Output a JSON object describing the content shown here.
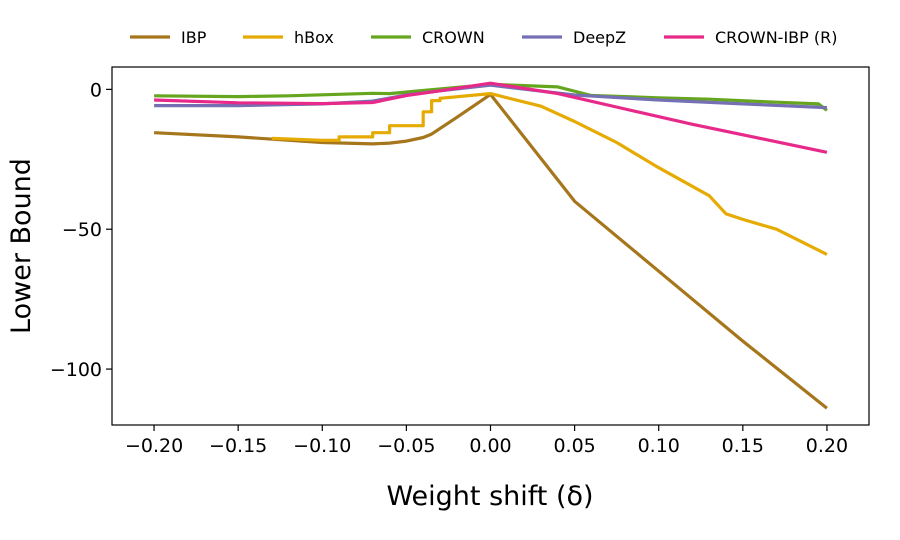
{
  "chart_data": {
    "type": "line",
    "xlabel": "Weight shift (δ)",
    "ylabel": "Lower Bound",
    "xlim": [
      -0.225,
      0.225
    ],
    "ylim": [
      -120,
      8
    ],
    "xticks": [
      -0.2,
      -0.15,
      -0.1,
      -0.05,
      0.0,
      0.05,
      0.1,
      0.15,
      0.2
    ],
    "xtick_labels": [
      "−0.20",
      "−0.15",
      "−0.10",
      "−0.05",
      "0.00",
      "0.05",
      "0.10",
      "0.15",
      "0.20"
    ],
    "yticks": [
      0,
      -50,
      -100
    ],
    "ytick_labels": [
      "0",
      "−50",
      "−100"
    ],
    "grid": false,
    "legend_position": "top-outside",
    "series": [
      {
        "name": "IBP",
        "color": "#a6761d",
        "x": [
          -0.2,
          -0.15,
          -0.1,
          -0.07,
          -0.06,
          -0.05,
          -0.04,
          -0.035,
          -0.02,
          0.0,
          0.05,
          0.1,
          0.15,
          0.2
        ],
        "y": [
          -15.5,
          -17.0,
          -19.0,
          -19.5,
          -19.2,
          -18.5,
          -17.2,
          -16.0,
          -10.0,
          -1.8,
          -40.0,
          -65.0,
          -90.0,
          -114.0
        ]
      },
      {
        "name": "hBox",
        "color": "#e6ab02",
        "x": [
          -0.13,
          -0.1,
          -0.09,
          -0.09,
          -0.07,
          -0.07,
          -0.06,
          -0.06,
          -0.04,
          -0.04,
          -0.035,
          -0.035,
          -0.03,
          -0.03,
          0.0,
          0.03,
          0.05,
          0.075,
          0.1,
          0.13,
          0.14,
          0.15,
          0.17,
          0.2
        ],
        "y": [
          -17.5,
          -18.2,
          -18.2,
          -17.0,
          -17.0,
          -15.5,
          -15.5,
          -13.0,
          -13.0,
          -8.0,
          -8.0,
          -4.0,
          -4.0,
          -3.2,
          -1.5,
          -6.0,
          -11.5,
          -19.0,
          -28.0,
          -38.0,
          -44.5,
          -46.5,
          -50.0,
          -59.0
        ]
      },
      {
        "name": "CROWN",
        "color": "#66a61e",
        "x": [
          -0.2,
          -0.15,
          -0.12,
          -0.08,
          -0.07,
          -0.06,
          -0.04,
          0.0,
          0.04,
          0.06,
          0.1,
          0.13,
          0.17,
          0.195,
          0.2
        ],
        "y": [
          -2.3,
          -2.6,
          -2.3,
          -1.6,
          -1.4,
          -1.5,
          -0.4,
          1.8,
          0.9,
          -2.2,
          -3.0,
          -3.5,
          -4.6,
          -5.2,
          -7.5
        ]
      },
      {
        "name": "DeepZ",
        "color": "#7570b3",
        "x": [
          -0.2,
          -0.15,
          -0.1,
          -0.07,
          -0.05,
          -0.03,
          0.0,
          0.05,
          0.1,
          0.15,
          0.2
        ],
        "y": [
          -5.8,
          -5.8,
          -5.2,
          -4.2,
          -2.0,
          -0.5,
          1.5,
          -2.0,
          -3.8,
          -5.2,
          -6.5
        ]
      },
      {
        "name": "CROWN-IBP (R)",
        "color": "#e7298a",
        "x": [
          -0.2,
          -0.15,
          -0.1,
          -0.07,
          -0.05,
          -0.03,
          0.0,
          0.04,
          0.08,
          0.12,
          0.16,
          0.2
        ],
        "y": [
          -3.8,
          -4.8,
          -5.1,
          -4.7,
          -2.2,
          -0.5,
          2.2,
          -1.5,
          -7.0,
          -12.5,
          -17.5,
          -22.5
        ]
      }
    ]
  }
}
